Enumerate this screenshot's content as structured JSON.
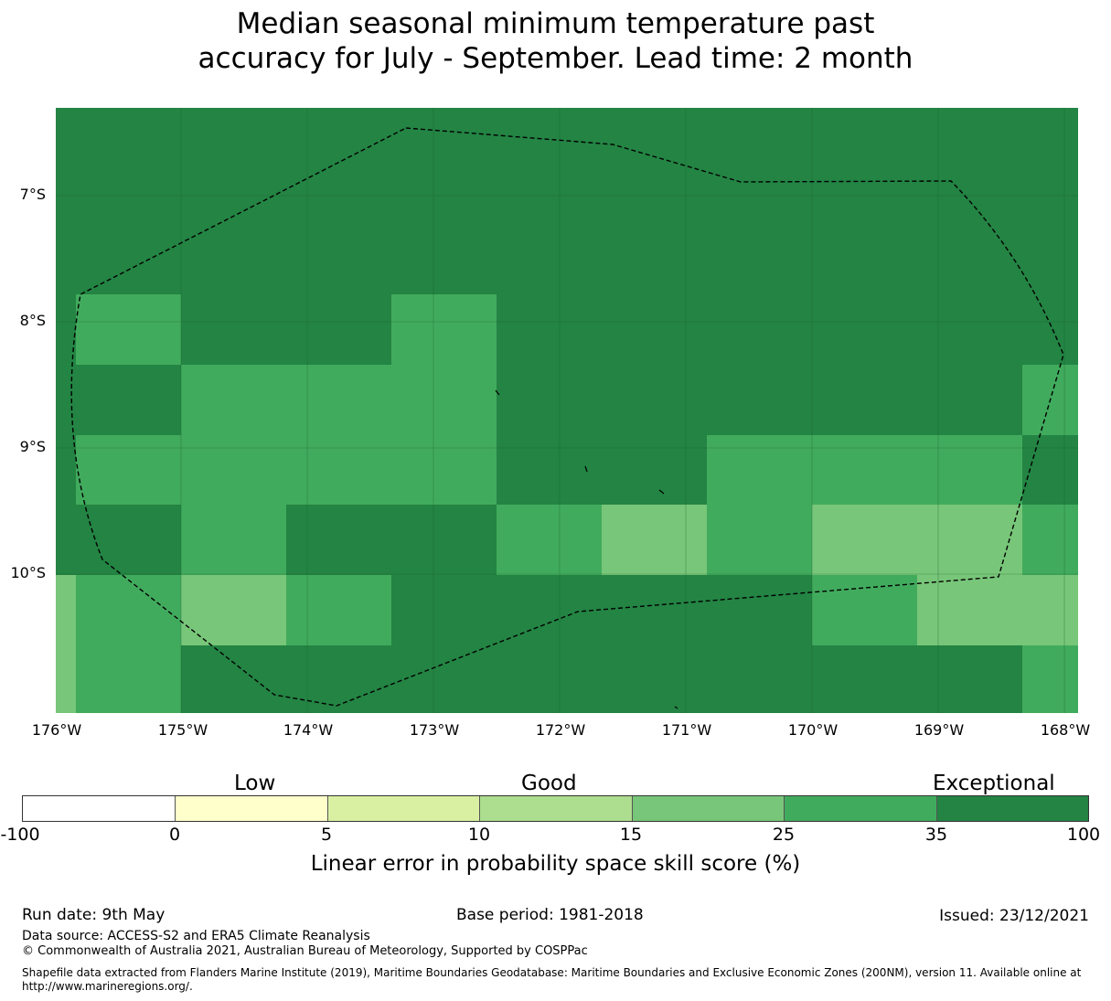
{
  "title": {
    "line1": "Median seasonal minimum temperature past",
    "line2": "accuracy for July - September. Lead time: 2 month"
  },
  "map": {
    "lat_ticks": [
      "7°S",
      "8°S",
      "9°S",
      "10°S"
    ],
    "lon_ticks": [
      "176°W",
      "175°W",
      "174°W",
      "173°W",
      "172°W",
      "171°W",
      "170°W",
      "169°W",
      "168°W"
    ],
    "colors": {
      "c15_25": "#78c679",
      "c25_35": "#41ab5d",
      "c35_100": "#238443"
    },
    "grid_rows": [
      [
        "c35_100",
        "c35_100",
        "c35_100",
        "c35_100",
        "c35_100",
        "c35_100",
        "c35_100",
        "c35_100",
        "c35_100",
        "c35_100",
        "c35_100"
      ],
      [
        "c35_100",
        "c35_100",
        "c35_100",
        "c35_100",
        "c35_100",
        "c35_100",
        "c35_100",
        "c35_100",
        "c35_100",
        "c35_100",
        "c35_100"
      ],
      [
        "c35_100",
        "c25_35",
        "c35_100",
        "c35_100",
        "c25_35",
        "c35_100",
        "c35_100",
        "c35_100",
        "c35_100",
        "c35_100",
        "c35_100"
      ],
      [
        "c35_100",
        "c35_100",
        "c25_35",
        "c25_35",
        "c25_35",
        "c35_100",
        "c35_100",
        "c35_100",
        "c35_100",
        "c35_100",
        "c25_35"
      ],
      [
        "c35_100",
        "c25_35",
        "c25_35",
        "c25_35",
        "c25_35",
        "c35_100",
        "c35_100",
        "c25_35",
        "c25_35",
        "c25_35",
        "c35_100"
      ],
      [
        "c35_100",
        "c35_100",
        "c25_35",
        "c35_100",
        "c35_100",
        "c25_35",
        "c15_25",
        "c25_35",
        "c15_25",
        "c15_25",
        "c25_35"
      ],
      [
        "c15_25",
        "c25_35",
        "c15_25",
        "c25_35",
        "c35_100",
        "c35_100",
        "c35_100",
        "c35_100",
        "c25_35",
        "c15_25",
        "c15_25"
      ],
      [
        "c15_25",
        "c25_35",
        "c35_100",
        "c35_100",
        "c35_100",
        "c35_100",
        "c35_100",
        "c35_100",
        "c35_100",
        "c35_100",
        "c25_35"
      ]
    ]
  },
  "colorbar": {
    "categories": [
      "Low",
      "Good",
      "Exceptional"
    ],
    "ticks": [
      "-100",
      "0",
      "5",
      "10",
      "15",
      "25",
      "35",
      "100"
    ],
    "colors": [
      "#ffffff",
      "#ffffcc",
      "#d9f0a3",
      "#addd8e",
      "#78c679",
      "#41ab5d",
      "#238443"
    ],
    "label": "Linear error in probability space skill score (%)"
  },
  "footer": {
    "run_date": "Run date: 9th May",
    "base_period": "Base period: 1981-2018",
    "issued": "Issued: 23/12/2021",
    "data_source": "Data source: ACCESS-S2 and ERA5 Climate Reanalysis",
    "copyright": "© Commonwealth of Australia 2021, Australian Bureau of Meteorology, Supported by COSPPac",
    "shapefile": "Shapefile data extracted from Flanders Marine Institute (2019), Maritime Boundaries Geodatabase: Maritime Boundaries and Exclusive Economic Zones (200NM), version 11. Available online at http://www.marineregions.org/."
  }
}
